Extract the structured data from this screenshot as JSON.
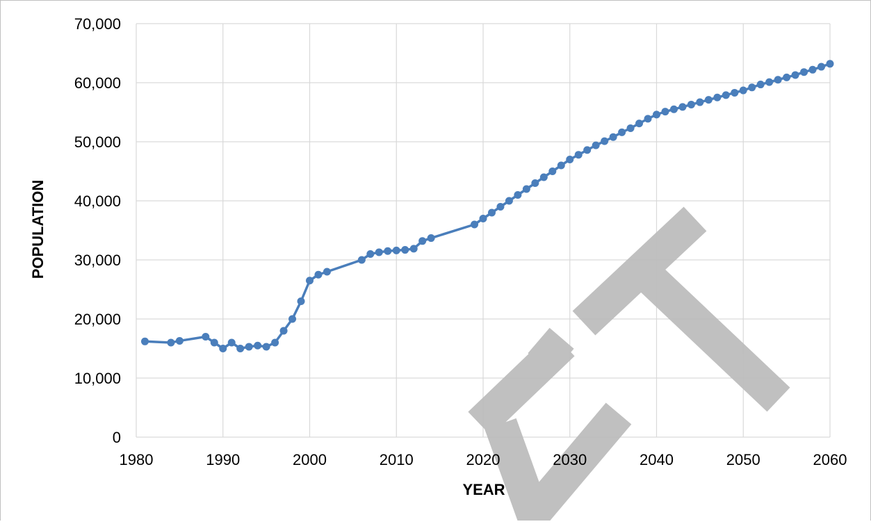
{
  "chart_data": {
    "type": "line",
    "xlabel": "YEAR",
    "ylabel": "POPULATION",
    "x": [
      1981,
      1984,
      1985,
      1988,
      1989,
      1990,
      1991,
      1992,
      1993,
      1994,
      1995,
      1996,
      1997,
      1998,
      1999,
      2000,
      2001,
      2002,
      2006,
      2007,
      2008,
      2009,
      2010,
      2011,
      2012,
      2013,
      2014,
      2019,
      2020,
      2021,
      2022,
      2023,
      2024,
      2025,
      2026,
      2027,
      2028,
      2029,
      2030,
      2031,
      2032,
      2033,
      2034,
      2035,
      2036,
      2037,
      2038,
      2039,
      2040,
      2041,
      2042,
      2043,
      2044,
      2045,
      2046,
      2047,
      2048,
      2049,
      2050,
      2051,
      2052,
      2053,
      2054,
      2055,
      2056,
      2057,
      2058,
      2059,
      2060
    ],
    "series": [
      {
        "color": "#4a7ebb",
        "values": [
          16200,
          16000,
          16300,
          17000,
          16000,
          15000,
          16000,
          15000,
          15300,
          15500,
          15300,
          16000,
          18000,
          20000,
          23000,
          26500,
          27500,
          28000,
          30000,
          31000,
          31300,
          31500,
          31600,
          31700,
          31900,
          33200,
          33700,
          36000,
          37000,
          38000,
          39000,
          40000,
          41000,
          42000,
          43000,
          44000,
          45000,
          46000,
          47000,
          47800,
          48600,
          49400,
          50100,
          50800,
          51600,
          52300,
          53100,
          53900,
          54600,
          55100,
          55500,
          55900,
          56300,
          56700,
          57100,
          57500,
          57900,
          58300,
          58700,
          59200,
          59700,
          60100,
          60500,
          60900,
          61300,
          61800,
          62200,
          62700,
          63200
        ]
      }
    ],
    "xlim": [
      1980,
      2060
    ],
    "xticks": [
      1980,
      1990,
      2000,
      2010,
      2020,
      2030,
      2040,
      2050,
      2060
    ],
    "ylim": [
      0,
      70000
    ],
    "yticks": [
      0,
      {
        "value": 10000,
        "label": "10,000"
      },
      {
        "value": 20000,
        "label": "20,000"
      },
      {
        "value": 30000,
        "label": "30,000"
      },
      {
        "value": 40000,
        "label": "40,000"
      },
      {
        "value": 50000,
        "label": "50,000"
      },
      {
        "value": 60000,
        "label": "60,000"
      },
      {
        "value": 70000,
        "label": "70,000"
      }
    ],
    "grid": true
  }
}
